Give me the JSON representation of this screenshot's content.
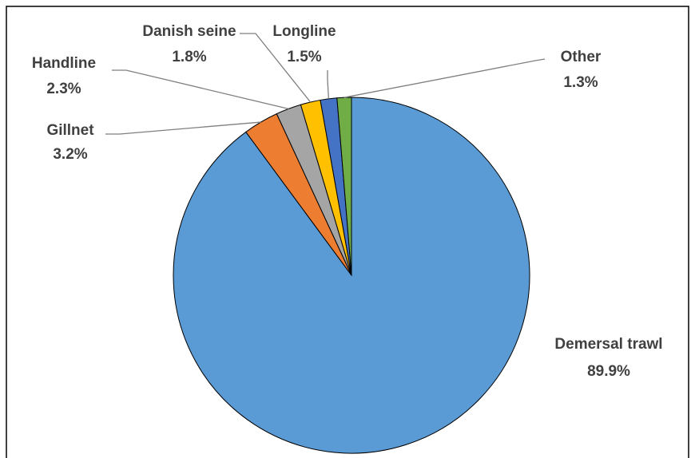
{
  "chart_data": {
    "type": "pie",
    "categories": [
      "Demersal trawl",
      "Gillnet",
      "Handline",
      "Danish seine",
      "Longline",
      "Other"
    ],
    "values": [
      89.9,
      3.2,
      2.3,
      1.8,
      1.5,
      1.3
    ],
    "value_labels": [
      "89.9%",
      "3.2%",
      "2.3%",
      "1.8%",
      "1.5%",
      "1.3%"
    ],
    "colors": [
      "#5b9bd5",
      "#ed7d31",
      "#a5a5a5",
      "#ffc000",
      "#4472c4",
      "#70ad47"
    ]
  }
}
